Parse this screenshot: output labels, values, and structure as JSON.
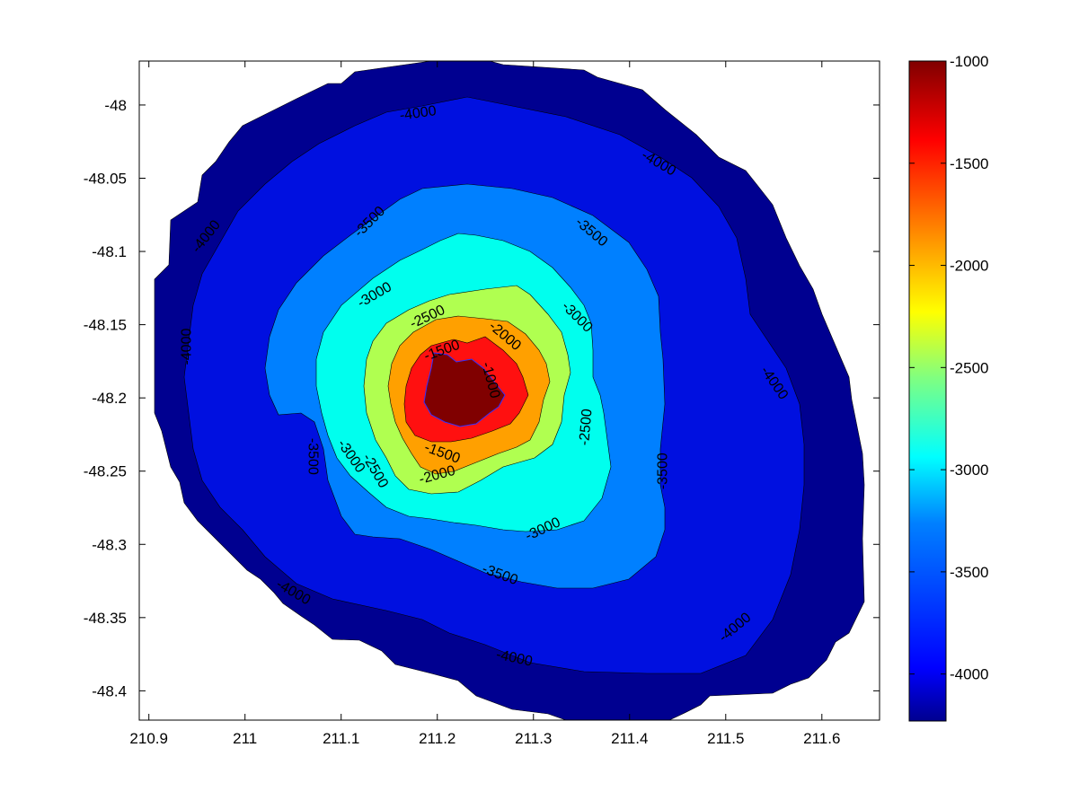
{
  "chart_data": {
    "type": "filled-contour",
    "title": "",
    "xlabel": "",
    "ylabel": "",
    "xlim": [
      210.89,
      211.66
    ],
    "ylim": [
      -48.42,
      -47.97
    ],
    "x_ticks": [
      "210.9",
      "211",
      "211.1",
      "211.2",
      "211.3",
      "211.4",
      "211.5",
      "211.6"
    ],
    "y_ticks": [
      "-48",
      "-48.05",
      "-48.1",
      "-48.15",
      "-48.2",
      "-48.25",
      "-48.3",
      "-48.35",
      "-48.4"
    ],
    "colorbar": {
      "range": [
        -4230,
        -1000
      ],
      "colormap": "jet",
      "ticks": [
        "-1000",
        "-1500",
        "-2000",
        "-2500",
        "-3000",
        "-3500",
        "-4000"
      ]
    },
    "contour_levels": [
      -4000,
      -3500,
      -3000,
      -2500,
      -2000,
      -1500,
      -1000
    ],
    "bands": [
      {
        "level": -4230,
        "color": "#000090"
      },
      {
        "level": -4000,
        "color": "#0010e0"
      },
      {
        "level": -3500,
        "color": "#0080ff"
      },
      {
        "level": -3000,
        "color": "#00ffee"
      },
      {
        "level": -2500,
        "color": "#b0ff50"
      },
      {
        "level": -2000,
        "color": "#ffa000"
      },
      {
        "level": -1500,
        "color": "#ff1010"
      },
      {
        "level": -1000,
        "color": "#800000"
      }
    ],
    "contour_labels": [
      {
        "text": "-4000",
        "x": 211.18,
        "y": -48.006,
        "angle": -8
      },
      {
        "text": "-4000",
        "x": 211.43,
        "y": -48.04,
        "angle": 30
      },
      {
        "text": "-4000",
        "x": 210.96,
        "y": -48.09,
        "angle": -52
      },
      {
        "text": "-4000",
        "x": 210.94,
        "y": -48.165,
        "angle": -90
      },
      {
        "text": "-4000",
        "x": 211.55,
        "y": -48.19,
        "angle": 55
      },
      {
        "text": "-4000",
        "x": 211.05,
        "y": -48.333,
        "angle": 30
      },
      {
        "text": "-4000",
        "x": 211.28,
        "y": -48.378,
        "angle": 12
      },
      {
        "text": "-4000",
        "x": 211.51,
        "y": -48.357,
        "angle": -40
      },
      {
        "text": "-3500",
        "x": 211.13,
        "y": -48.08,
        "angle": -45
      },
      {
        "text": "-3500",
        "x": 211.36,
        "y": -48.087,
        "angle": 40
      },
      {
        "text": "-3500",
        "x": 211.07,
        "y": -48.24,
        "angle": 90
      },
      {
        "text": "-3500",
        "x": 211.435,
        "y": -48.25,
        "angle": -90
      },
      {
        "text": "-3500",
        "x": 211.265,
        "y": -48.321,
        "angle": 20
      },
      {
        "text": "-3000",
        "x": 211.135,
        "y": -48.13,
        "angle": -30
      },
      {
        "text": "-3000",
        "x": 211.345,
        "y": -48.145,
        "angle": 45
      },
      {
        "text": "-3000",
        "x": 211.11,
        "y": -48.24,
        "angle": 55
      },
      {
        "text": "-3000",
        "x": 211.31,
        "y": -48.29,
        "angle": -25
      },
      {
        "text": "-2500",
        "x": 211.19,
        "y": -48.145,
        "angle": -25
      },
      {
        "text": "-2500",
        "x": 211.355,
        "y": -48.22,
        "angle": -85
      },
      {
        "text": "-2500",
        "x": 211.135,
        "y": -48.25,
        "angle": 60
      },
      {
        "text": "-2000",
        "x": 211.27,
        "y": -48.158,
        "angle": 40
      },
      {
        "text": "-2000",
        "x": 211.2,
        "y": -48.253,
        "angle": -15
      },
      {
        "text": "-1500",
        "x": 211.205,
        "y": -48.168,
        "angle": -20
      },
      {
        "text": "-1500",
        "x": 211.205,
        "y": -48.238,
        "angle": 20
      },
      {
        "text": "-1000",
        "x": 211.255,
        "y": -48.188,
        "angle": 75
      }
    ]
  }
}
